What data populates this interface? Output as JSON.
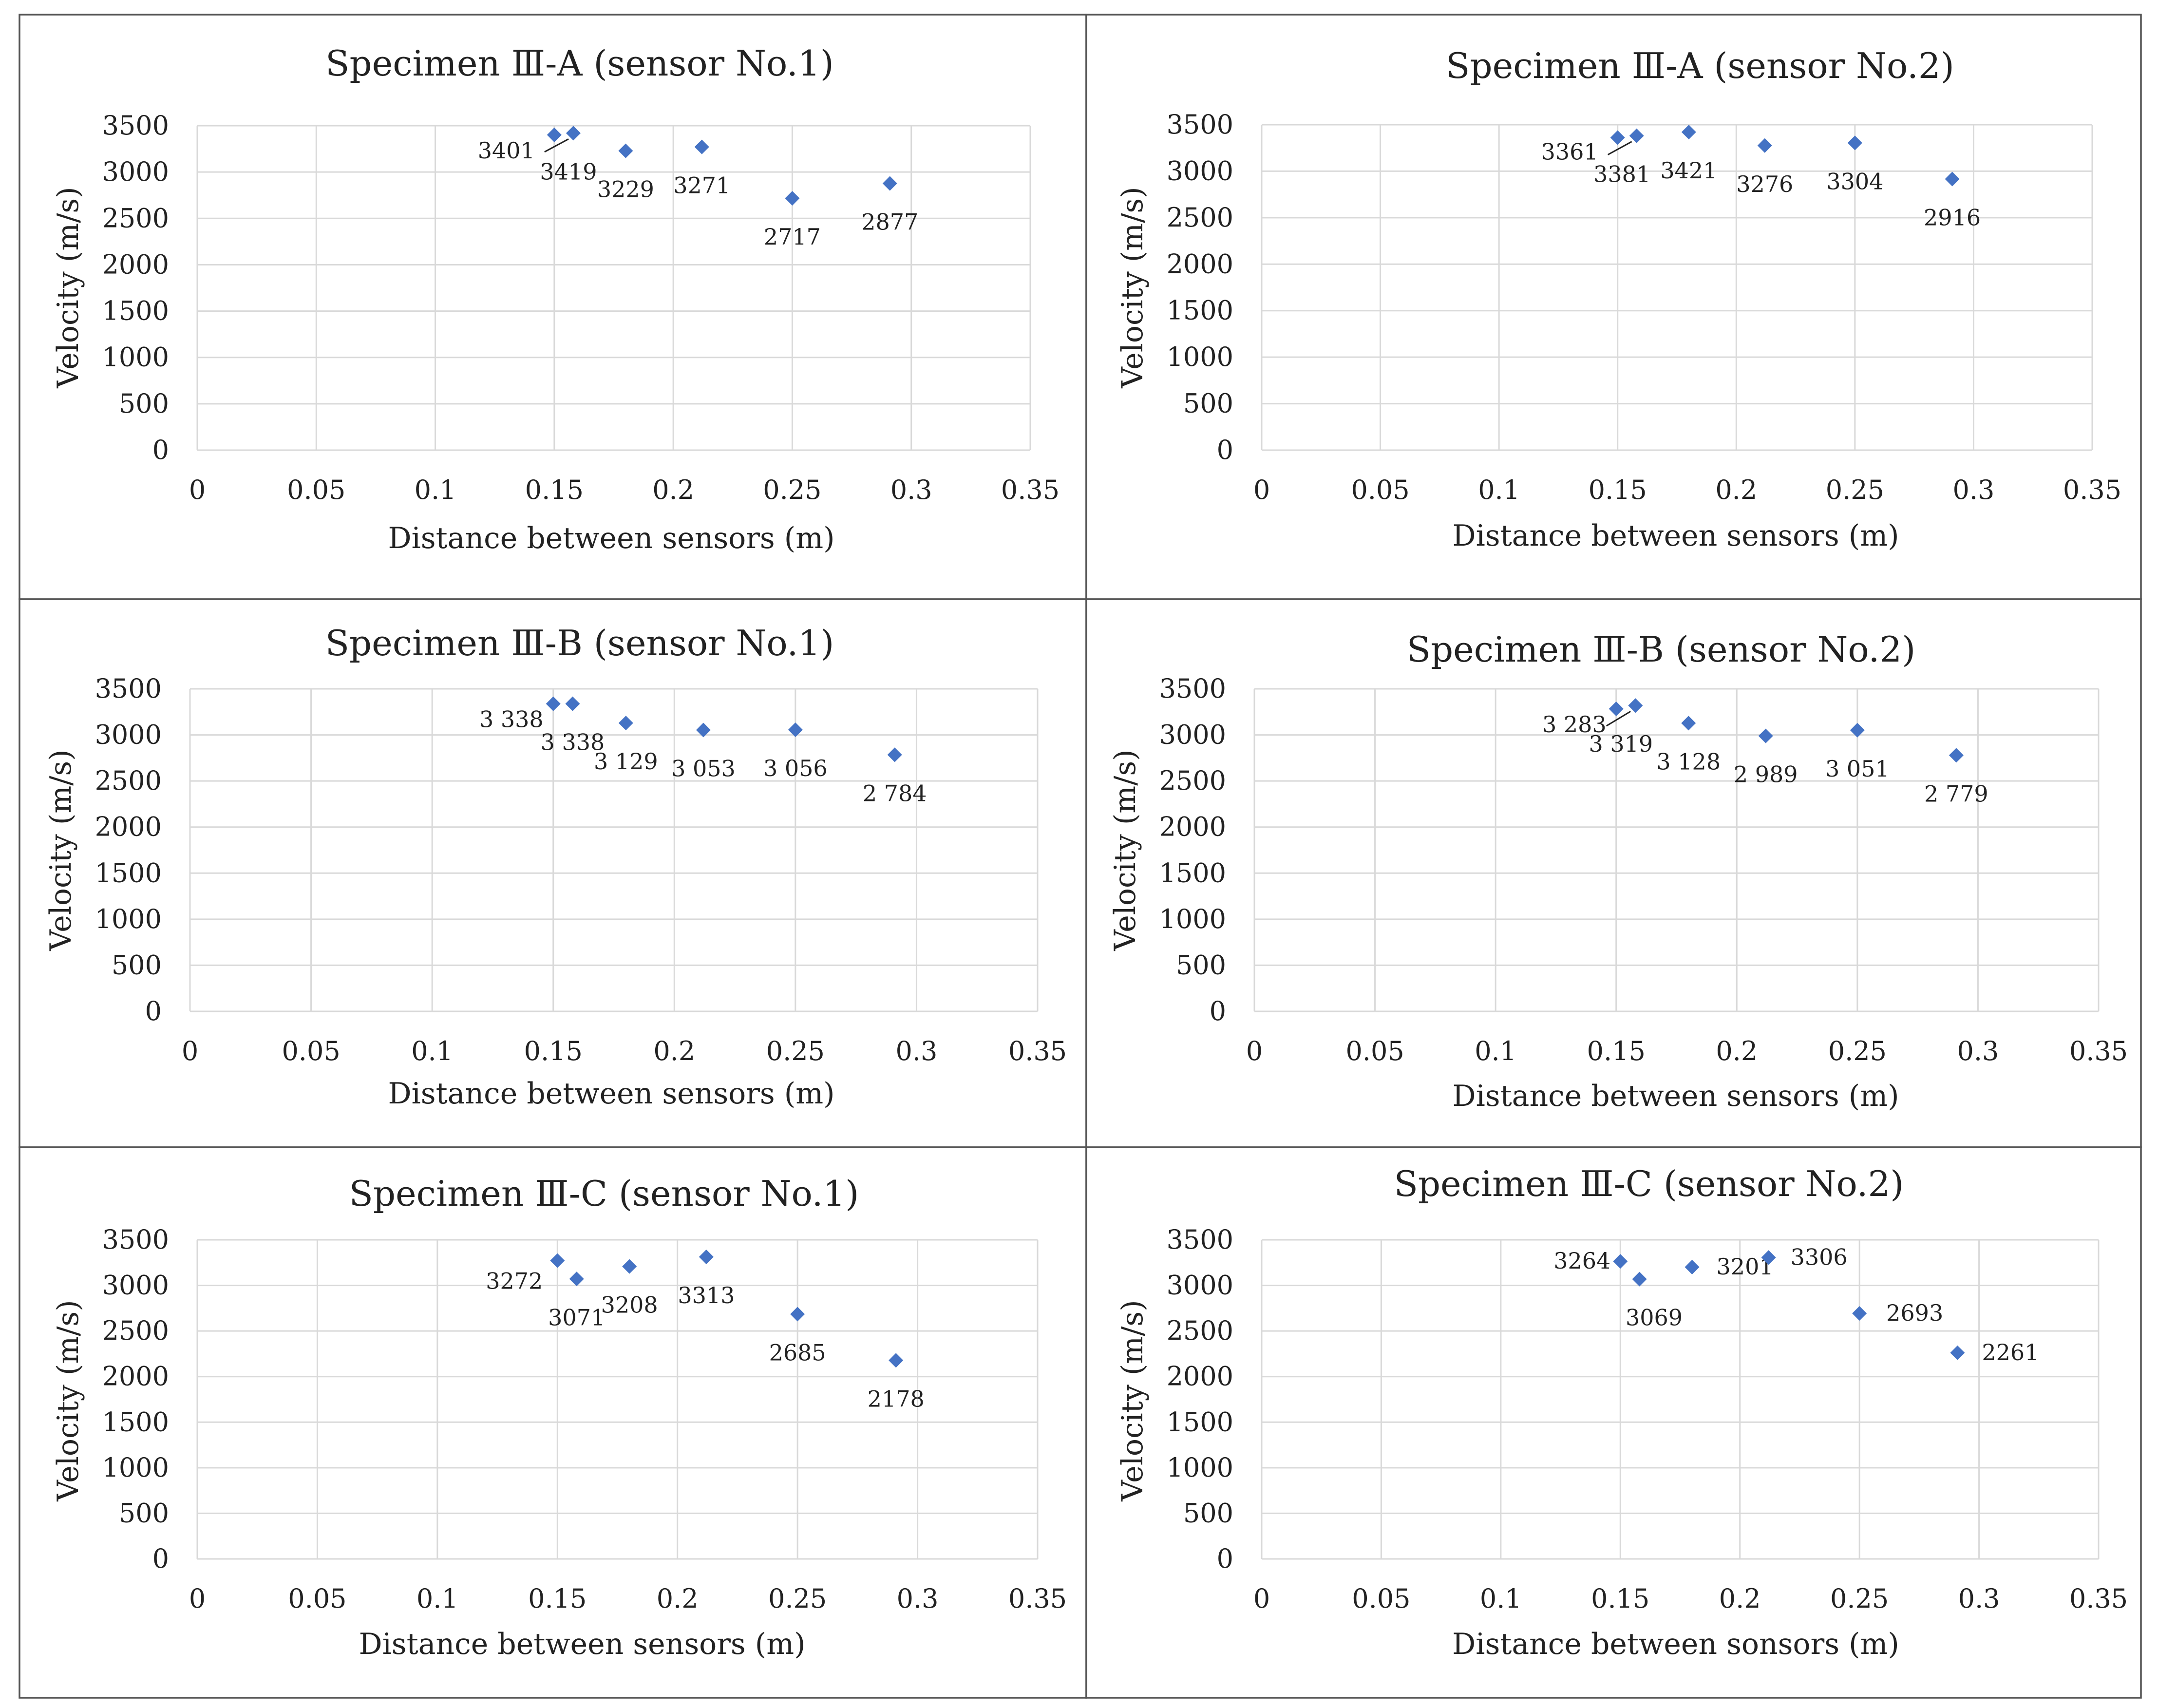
{
  "chart_data": [
    {
      "type": "scatter",
      "title": "Specimen Ⅲ-A (sensor No.1)",
      "xlabel": "Distance between sensors (m)",
      "ylabel": "Velocity (m/s)",
      "xlim": [
        0,
        0.35
      ],
      "ylim": [
        0,
        3500
      ],
      "x_ticks": [
        "0",
        "0.05",
        "0.1",
        "0.15",
        "0.2",
        "0.25",
        "0.3",
        "0.35"
      ],
      "y_ticks": [
        "0",
        "500",
        "1000",
        "1500",
        "2000",
        "2500",
        "3000",
        "3500"
      ],
      "points": [
        {
          "x": 0.15,
          "y": 3401,
          "label": "3401"
        },
        {
          "x": 0.158,
          "y": 3419,
          "label": "3419"
        },
        {
          "x": 0.18,
          "y": 3229,
          "label": "3229"
        },
        {
          "x": 0.212,
          "y": 3271,
          "label": "3271"
        },
        {
          "x": 0.25,
          "y": 2717,
          "label": "2717"
        },
        {
          "x": 0.291,
          "y": 2877,
          "label": "2877"
        }
      ]
    },
    {
      "type": "scatter",
      "title": "Specimen Ⅲ-A (sensor No.2)",
      "xlabel": "Distance between sensors (m)",
      "ylabel": "Velocity (m/s)",
      "xlim": [
        0,
        0.35
      ],
      "ylim": [
        0,
        3500
      ],
      "x_ticks": [
        "0",
        "0.05",
        "0.1",
        "0.15",
        "0.2",
        "0.25",
        "0.3",
        "0.35"
      ],
      "y_ticks": [
        "0",
        "500",
        "1000",
        "1500",
        "2000",
        "2500",
        "3000",
        "3500"
      ],
      "points": [
        {
          "x": 0.15,
          "y": 3361,
          "label": "3361"
        },
        {
          "x": 0.158,
          "y": 3381,
          "label": "3381"
        },
        {
          "x": 0.18,
          "y": 3421,
          "label": "3421"
        },
        {
          "x": 0.212,
          "y": 3276,
          "label": "3276"
        },
        {
          "x": 0.25,
          "y": 3304,
          "label": "3304"
        },
        {
          "x": 0.291,
          "y": 2916,
          "label": "2916"
        }
      ]
    },
    {
      "type": "scatter",
      "title": "Specimen Ⅲ-B (sensor No.1)",
      "xlabel": "Distance between sensors (m)",
      "ylabel": "Velocity (m/s)",
      "xlim": [
        0,
        0.35
      ],
      "ylim": [
        0,
        3500
      ],
      "x_ticks": [
        "0",
        "0.05",
        "0.1",
        "0.15",
        "0.2",
        "0.25",
        "0.3",
        "0.35"
      ],
      "y_ticks": [
        "0",
        "500",
        "1000",
        "1500",
        "2000",
        "2500",
        "3000",
        "3500"
      ],
      "points": [
        {
          "x": 0.15,
          "y": 3338,
          "label": "3 338"
        },
        {
          "x": 0.158,
          "y": 3338,
          "label": "3 338"
        },
        {
          "x": 0.18,
          "y": 3129,
          "label": "3 129"
        },
        {
          "x": 0.212,
          "y": 3053,
          "label": "3 053"
        },
        {
          "x": 0.25,
          "y": 3056,
          "label": "3 056"
        },
        {
          "x": 0.291,
          "y": 2784,
          "label": "2 784"
        }
      ]
    },
    {
      "type": "scatter",
      "title": "Specimen Ⅲ-B (sensor No.2)",
      "xlabel": "Distance between sensors (m)",
      "ylabel": "Velocity (m/s)",
      "xlim": [
        0,
        0.35
      ],
      "ylim": [
        0,
        3500
      ],
      "x_ticks": [
        "0",
        "0.05",
        "0.1",
        "0.15",
        "0.2",
        "0.25",
        "0.3",
        "0.35"
      ],
      "y_ticks": [
        "0",
        "500",
        "1000",
        "1500",
        "2000",
        "2500",
        "3000",
        "3500"
      ],
      "points": [
        {
          "x": 0.15,
          "y": 3283,
          "label": "3 283"
        },
        {
          "x": 0.158,
          "y": 3319,
          "label": "3 319"
        },
        {
          "x": 0.18,
          "y": 3128,
          "label": "3 128"
        },
        {
          "x": 0.212,
          "y": 2989,
          "label": "2 989"
        },
        {
          "x": 0.25,
          "y": 3051,
          "label": "3 051"
        },
        {
          "x": 0.291,
          "y": 2779,
          "label": "2 779"
        }
      ]
    },
    {
      "type": "scatter",
      "title": "Specimen Ⅲ-C (sensor No.1)",
      "xlabel": "Distance between sensors (m)",
      "ylabel": "Velocity (m/s)",
      "xlim": [
        0,
        0.35
      ],
      "ylim": [
        0,
        3500
      ],
      "x_ticks": [
        "0",
        "0.05",
        "0.1",
        "0.15",
        "0.2",
        "0.25",
        "0.3",
        "0.35"
      ],
      "y_ticks": [
        "0",
        "500",
        "1000",
        "1500",
        "2000",
        "2500",
        "3000",
        "3500"
      ],
      "points": [
        {
          "x": 0.15,
          "y": 3272,
          "label": "3272"
        },
        {
          "x": 0.158,
          "y": 3071,
          "label": "3071"
        },
        {
          "x": 0.18,
          "y": 3208,
          "label": "3208"
        },
        {
          "x": 0.212,
          "y": 3313,
          "label": "3313"
        },
        {
          "x": 0.25,
          "y": 2685,
          "label": "2685"
        },
        {
          "x": 0.291,
          "y": 2178,
          "label": "2178"
        }
      ]
    },
    {
      "type": "scatter",
      "title": "Specimen Ⅲ-C (sensor No.2)",
      "xlabel": "Distance between sonsors (m)",
      "ylabel": "Velocity (m/s)",
      "xlim": [
        0,
        0.35
      ],
      "ylim": [
        0,
        3500
      ],
      "x_ticks": [
        "0",
        "0.05",
        "0.1",
        "0.15",
        "0.2",
        "0.25",
        "0.3",
        "0.35"
      ],
      "y_ticks": [
        "0",
        "500",
        "1000",
        "1500",
        "2000",
        "2500",
        "3000",
        "3500"
      ],
      "points": [
        {
          "x": 0.15,
          "y": 3264,
          "label": "3264"
        },
        {
          "x": 0.158,
          "y": 3069,
          "label": "3069"
        },
        {
          "x": 0.18,
          "y": 3201,
          "label": "3201"
        },
        {
          "x": 0.212,
          "y": 3306,
          "label": "3306"
        },
        {
          "x": 0.25,
          "y": 2693,
          "label": "2693"
        },
        {
          "x": 0.291,
          "y": 2261,
          "label": "2261"
        }
      ]
    }
  ],
  "colors": {
    "marker": "#4472C4",
    "grid": "#d9d9d9",
    "frame": "#555555"
  }
}
